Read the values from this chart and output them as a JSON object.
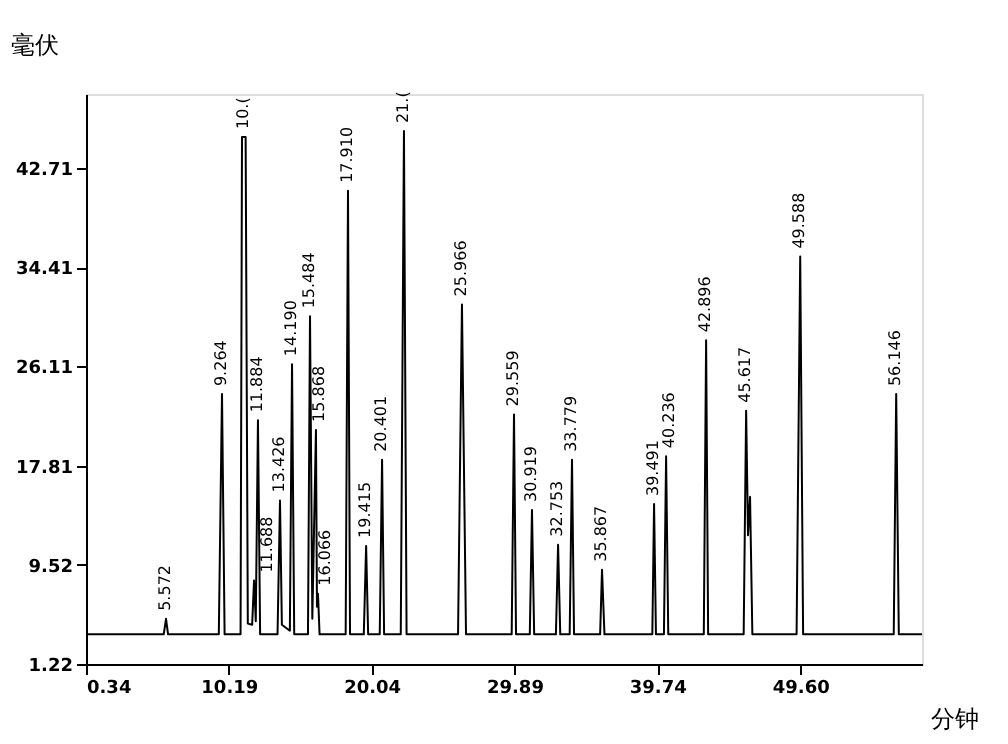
{
  "chart_data": {
    "type": "line",
    "xlabel": "分钟",
    "ylabel": "毫伏",
    "xlim": [
      0.34,
      58.0
    ],
    "ylim": [
      1.22,
      48.9
    ],
    "xticks": [
      0.34,
      10.19,
      20.04,
      29.89,
      39.74,
      {
        "value": 49.6,
        "label": "49.60"
      }
    ],
    "yticks": [
      1.22,
      9.52,
      17.81,
      26.11,
      34.41,
      42.71
    ],
    "grid": false,
    "marker": "none",
    "line_style": "solid",
    "series": [
      {
        "color": "#000000",
        "x": [
          0.34,
          5.7,
          5.86,
          6.0,
          9.5,
          9.72,
          9.9,
          11.0,
          11.1,
          11.35,
          11.5,
          11.8,
          11.93,
          12.05,
          12.2,
          12.35,
          13.55,
          13.72,
          13.85,
          14.4,
          14.55,
          14.7,
          15.65,
          15.79,
          15.95,
          16.2,
          16.27,
          16.34,
          16.45,
          18.25,
          18.41,
          18.55,
          19.5,
          19.66,
          19.8,
          20.6,
          20.76,
          20.9,
          22.05,
          22.27,
          22.45,
          26.0,
          26.27,
          26.55,
          29.7,
          29.86,
          30.0,
          30.95,
          31.1,
          31.25,
          32.75,
          32.9,
          33.05,
          33.7,
          33.86,
          34.0,
          35.8,
          35.93,
          36.1,
          39.4,
          39.52,
          39.65,
          40.2,
          40.35,
          40.5,
          42.95,
          43.11,
          43.25,
          45.7,
          45.87,
          46.0,
          46.14,
          46.3,
          49.35,
          49.6,
          49.8,
          56.05,
          56.22,
          56.4,
          58.0
        ],
        "values": [
          3.7,
          3.7,
          5.0,
          3.7,
          3.7,
          23.8,
          3.7,
          3.7,
          45.3,
          45.3,
          4.6,
          4.5,
          8.2,
          4.8,
          21.6,
          3.7,
          3.7,
          14.9,
          4.5,
          4.0,
          26.3,
          3.7,
          3.7,
          30.3,
          5.0,
          20.8,
          6.0,
          7.1,
          3.7,
          3.7,
          40.8,
          3.7,
          3.7,
          11.1,
          3.7,
          3.7,
          18.3,
          3.7,
          3.7,
          45.8,
          3.7,
          3.7,
          31.3,
          3.7,
          3.7,
          22.1,
          3.7,
          3.7,
          14.1,
          3.7,
          3.7,
          11.2,
          3.7,
          3.7,
          18.3,
          3.7,
          3.7,
          9.1,
          3.7,
          3.7,
          14.6,
          3.7,
          3.7,
          18.6,
          3.7,
          3.7,
          28.3,
          3.7,
          3.7,
          22.4,
          12.0,
          15.2,
          3.7,
          3.7,
          35.3,
          3.7,
          3.7,
          23.8,
          3.7,
          3.7
        ]
      }
    ],
    "annotations": [
      {
        "text": "5.572",
        "x": 5.86,
        "y": 5.0
      },
      {
        "text": "9.264",
        "x": 9.72,
        "y": 23.8
      },
      {
        "text": "10.(",
        "x": 11.24,
        "y": 45.3
      },
      {
        "text": "11.688",
        "x": 11.93,
        "y": 8.2
      },
      {
        "text": "11.884",
        "x": 12.2,
        "y": 21.6
      },
      {
        "text": "13.426",
        "x": 13.72,
        "y": 14.9
      },
      {
        "text": "14.190",
        "x": 14.55,
        "y": 26.3
      },
      {
        "text": "15.484",
        "x": 15.79,
        "y": 30.3
      },
      {
        "text": "15.868",
        "x": 16.2,
        "y": 20.8
      },
      {
        "text": "16.066",
        "x": 16.34,
        "y": 7.1
      },
      {
        "text": "17.910",
        "x": 18.41,
        "y": 40.8
      },
      {
        "text": "19.415",
        "x": 19.66,
        "y": 11.1
      },
      {
        "text": "20.401",
        "x": 20.76,
        "y": 18.3
      },
      {
        "text": "21.(",
        "x": 22.27,
        "y": 45.8
      },
      {
        "text": "25.966",
        "x": 26.27,
        "y": 31.3
      },
      {
        "text": "29.559",
        "x": 29.86,
        "y": 22.1
      },
      {
        "text": "30.919",
        "x": 31.1,
        "y": 14.1
      },
      {
        "text": "32.753",
        "x": 32.9,
        "y": 11.2
      },
      {
        "text": "33.779",
        "x": 33.86,
        "y": 18.3
      },
      {
        "text": "35.867",
        "x": 35.93,
        "y": 9.1
      },
      {
        "text": "39.491",
        "x": 39.52,
        "y": 14.6
      },
      {
        "text": "40.236",
        "x": 40.35,
        "y": 18.6
      },
      {
        "text": "42.896",
        "x": 43.11,
        "y": 28.3
      },
      {
        "text": "45.617",
        "x": 45.87,
        "y": 22.4
      },
      {
        "text": "49.588",
        "x": 49.6,
        "y": 35.3
      },
      {
        "text": "56.146",
        "x": 56.22,
        "y": 23.8
      }
    ]
  }
}
